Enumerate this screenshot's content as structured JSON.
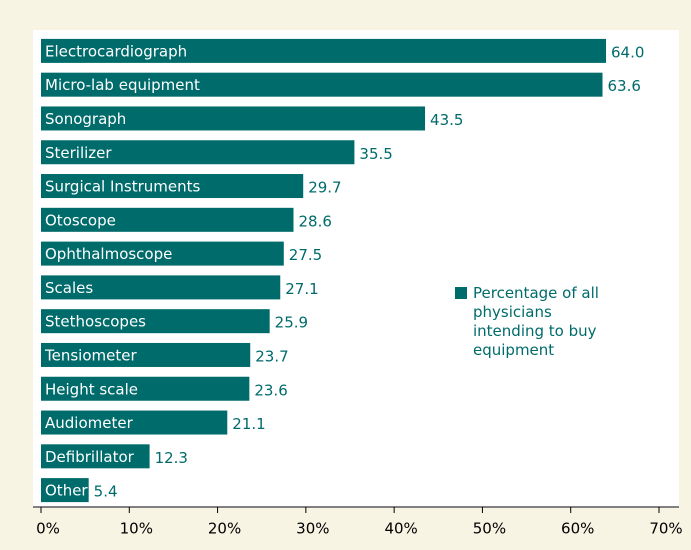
{
  "chart_data": {
    "type": "bar",
    "orientation": "horizontal",
    "categories": [
      "Electrocardiograph",
      "Micro-lab equipment",
      "Sonograph",
      "Sterilizer",
      "Surgical Instruments",
      "Otoscope",
      "Ophthalmoscope",
      "Scales",
      "Stethoscopes",
      "Tensiometer",
      "Height scale",
      "Audiometer",
      "Defibrillator",
      "Other"
    ],
    "series": [
      {
        "name": "Percentage of all physicians intending to buy equipment",
        "color": "#006b6b",
        "values": [
          64.0,
          63.6,
          43.5,
          35.5,
          29.7,
          28.6,
          27.5,
          27.1,
          25.9,
          23.7,
          23.6,
          21.1,
          12.3,
          5.4
        ],
        "value_labels": [
          "64.0",
          "63.6",
          "43.5",
          "35.5",
          "29.7",
          "28.6",
          "27.5",
          "27.1",
          "25.9",
          "23.7",
          "23.6",
          "21.1",
          "12.3",
          "5.4"
        ]
      }
    ],
    "xlim": [
      0,
      70
    ],
    "xticks": [
      {
        "value": 0,
        "label": "0%"
      },
      {
        "value": 10,
        "label": "10%"
      },
      {
        "value": 20,
        "label": "20%"
      },
      {
        "value": 30,
        "label": "30%"
      },
      {
        "value": 40,
        "label": "40%"
      },
      {
        "value": 50,
        "label": "50%"
      },
      {
        "value": 60,
        "label": "60%"
      },
      {
        "value": 70,
        "label": "70%"
      }
    ],
    "grid": false,
    "legend": "right"
  }
}
